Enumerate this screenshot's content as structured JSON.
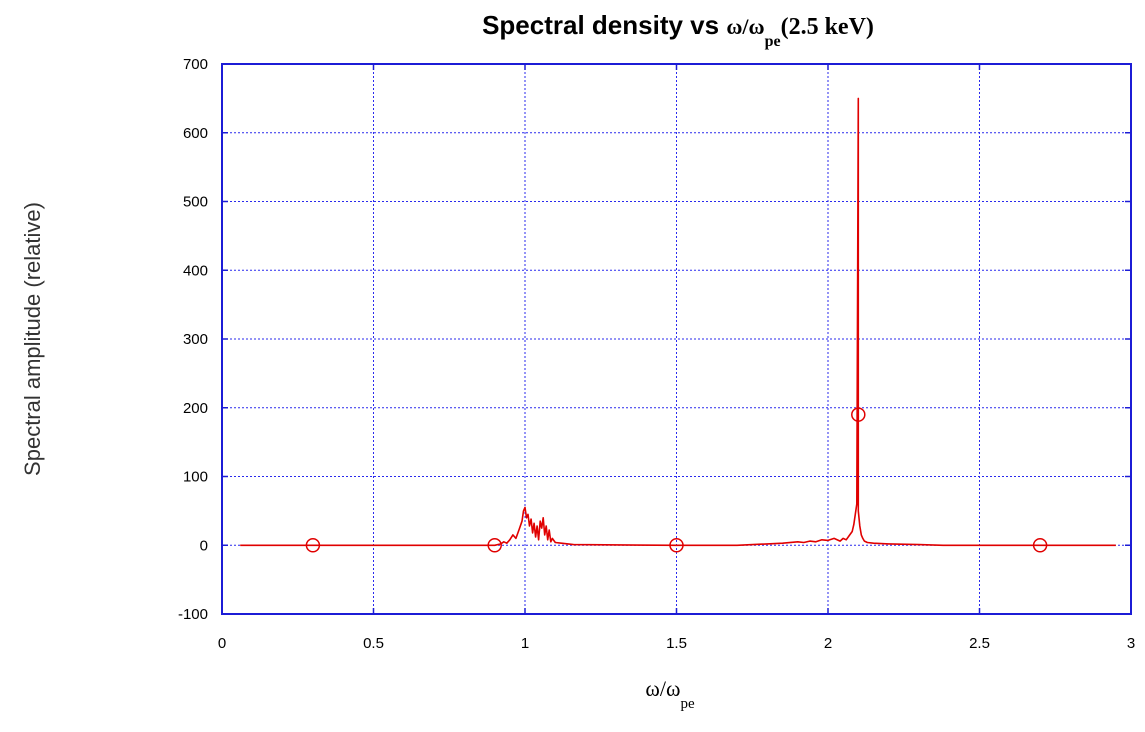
{
  "colors": {
    "frame": "#1c1cd6",
    "grid": "#2a2aee",
    "series": "#e00000",
    "background": "#ffffff"
  },
  "chart_data": {
    "type": "line",
    "title": {
      "main": "Spectral density vs",
      "symbol": "ω/ω",
      "subscript": "pe",
      "suffix": "(2.5 keV)"
    },
    "xlabel": {
      "symbol": "ω/ω",
      "subscript": "pe"
    },
    "ylabel": "Spectral amplitude (relative)",
    "xlim": [
      0,
      3
    ],
    "ylim": [
      -100,
      700
    ],
    "xticks": [
      0,
      0.5,
      1,
      1.5,
      2,
      2.5,
      3
    ],
    "xtick_labels": [
      "0",
      "0.5",
      "1",
      "1.5",
      "2",
      "2.5",
      "3"
    ],
    "yticks": [
      -100,
      0,
      100,
      200,
      300,
      400,
      500,
      600,
      700
    ],
    "ytick_labels": [
      "-100",
      "0",
      "100",
      "200",
      "300",
      "400",
      "500",
      "600",
      "700"
    ],
    "grid": true,
    "legend": "none",
    "series": [
      {
        "style": "line",
        "x": [
          0.06,
          0.9,
          0.92,
          0.93,
          0.94,
          0.95,
          0.96,
          0.97,
          0.98,
          0.99,
          0.995,
          1.0,
          1.005,
          1.01,
          1.015,
          1.02,
          1.025,
          1.03,
          1.035,
          1.04,
          1.045,
          1.05,
          1.055,
          1.06,
          1.065,
          1.07,
          1.075,
          1.08,
          1.085,
          1.09,
          1.1,
          1.12,
          1.16,
          1.5,
          1.7,
          1.8,
          1.85,
          1.9,
          1.92,
          1.94,
          1.96,
          1.98,
          2.0,
          2.02,
          2.04,
          2.05,
          2.06,
          2.07,
          2.08,
          2.085,
          2.09,
          2.095,
          2.1,
          2.1,
          2.1,
          2.105,
          2.11,
          2.115,
          2.12,
          2.13,
          2.15,
          2.2,
          2.3,
          2.38,
          2.5,
          2.95
        ],
        "y": [
          0,
          0,
          2,
          5,
          3,
          8,
          15,
          10,
          22,
          35,
          50,
          55,
          40,
          45,
          28,
          38,
          18,
          32,
          12,
          28,
          8,
          35,
          25,
          40,
          15,
          28,
          8,
          22,
          5,
          10,
          4,
          3,
          1,
          0,
          0,
          2,
          3,
          5,
          4,
          6,
          5,
          8,
          7,
          10,
          6,
          10,
          8,
          14,
          20,
          30,
          45,
          60,
          650,
          190,
          50,
          28,
          15,
          10,
          6,
          4,
          3,
          2,
          1,
          0,
          0,
          0
        ]
      },
      {
        "style": "markers",
        "marker": "circle",
        "x": [
          0.3,
          0.9,
          1.5,
          2.1,
          2.7
        ],
        "y": [
          0,
          0,
          0,
          190,
          0
        ]
      }
    ]
  }
}
